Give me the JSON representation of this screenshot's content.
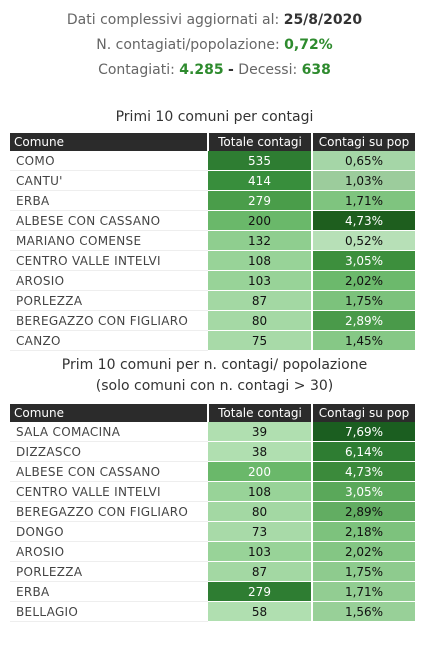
{
  "header": {
    "line1_label": "Dati complessivi aggiornati al:",
    "line1_value": "25/8/2020",
    "line2_label": "N. contagiati/popolazione:",
    "line2_value": "0,72%",
    "line3_label1": "Contagiati:",
    "line3_value1": "4.285",
    "line3_sep": "-",
    "line3_label2": "Decessi:",
    "line3_value2": "638"
  },
  "table1": {
    "title": "Primi 10 comuni per contagi",
    "columns": [
      "Comune",
      "Totale contagi",
      "Contagi su pop"
    ],
    "rows": [
      {
        "comune": "COMO",
        "totale": "535",
        "pct": "0,65%",
        "c2": "#2e7d32",
        "c3": "#a5d6a7",
        "t2": "#ffffff",
        "t3": "#111111"
      },
      {
        "comune": "CANTU'",
        "totale": "414",
        "pct": "1,03%",
        "c2": "#388e3c",
        "c3": "#9ccc9c",
        "t2": "#ffffff",
        "t3": "#111111"
      },
      {
        "comune": "ERBA",
        "totale": "279",
        "pct": "1,71%",
        "c2": "#4a9d4a",
        "c3": "#7fc47f",
        "t2": "#ffffff",
        "t3": "#111111"
      },
      {
        "comune": "ALBESE CON CASSANO",
        "totale": "200",
        "pct": "4,73%",
        "c2": "#6ab86a",
        "c3": "#1e5e1e",
        "t2": "#111111",
        "t3": "#ffffff"
      },
      {
        "comune": "MARIANO COMENSE",
        "totale": "132",
        "pct": "0,52%",
        "c2": "#8fce8f",
        "c3": "#b7e0b7",
        "t2": "#111111",
        "t3": "#111111"
      },
      {
        "comune": "CENTRO VALLE INTELVI",
        "totale": "108",
        "pct": "3,05%",
        "c2": "#98d398",
        "c3": "#3d8f3d",
        "t2": "#111111",
        "t3": "#ffffff"
      },
      {
        "comune": "AROSIO",
        "totale": "103",
        "pct": "2,02%",
        "c2": "#98d398",
        "c3": "#6cb96c",
        "t2": "#111111",
        "t3": "#111111"
      },
      {
        "comune": "PORLEZZA",
        "totale": "87",
        "pct": "1,75%",
        "c2": "#a3d8a3",
        "c3": "#7cc27c",
        "t2": "#111111",
        "t3": "#111111"
      },
      {
        "comune": "BEREGAZZO CON FIGLIARO",
        "totale": "80",
        "pct": "2,89%",
        "c2": "#a5d9a5",
        "c3": "#4a9a4a",
        "t2": "#111111",
        "t3": "#ffffff"
      },
      {
        "comune": "CANZO",
        "totale": "75",
        "pct": "1,45%",
        "c2": "#a8daa8",
        "c3": "#86c886",
        "t2": "#111111",
        "t3": "#111111"
      }
    ]
  },
  "table2": {
    "title_line1": "Prim 10 comuni per n. contagi/ popolazione",
    "title_line2": "(solo comuni con n. contagi > 30)",
    "columns": [
      "Comune",
      "Totale contagi",
      "Contagi su pop"
    ],
    "rows": [
      {
        "comune": "SALA COMACINA",
        "totale": "39",
        "pct": "7,69%",
        "c2": "#b0dfb0",
        "c3": "#1b5e20",
        "t2": "#111111",
        "t3": "#ffffff"
      },
      {
        "comune": "DIZZASCO",
        "totale": "38",
        "pct": "6,14%",
        "c2": "#b0dfb0",
        "c3": "#2e7d32",
        "t2": "#111111",
        "t3": "#ffffff"
      },
      {
        "comune": "ALBESE CON CASSANO",
        "totale": "200",
        "pct": "4,73%",
        "c2": "#6ab86a",
        "c3": "#3b8a3b",
        "t2": "#ffffff",
        "t3": "#ffffff"
      },
      {
        "comune": "CENTRO VALLE INTELVI",
        "totale": "108",
        "pct": "3,05%",
        "c2": "#98d398",
        "c3": "#5aa85a",
        "t2": "#111111",
        "t3": "#ffffff"
      },
      {
        "comune": "BEREGAZZO CON FIGLIARO",
        "totale": "80",
        "pct": "2,89%",
        "c2": "#a3d8a3",
        "c3": "#62ad62",
        "t2": "#111111",
        "t3": "#111111"
      },
      {
        "comune": "DONGO",
        "totale": "73",
        "pct": "2,18%",
        "c2": "#a8daa8",
        "c3": "#7dc27d",
        "t2": "#111111",
        "t3": "#111111"
      },
      {
        "comune": "AROSIO",
        "totale": "103",
        "pct": "2,02%",
        "c2": "#98d398",
        "c3": "#84c684",
        "t2": "#111111",
        "t3": "#111111"
      },
      {
        "comune": "PORLEZZA",
        "totale": "87",
        "pct": "1,75%",
        "c2": "#a3d8a3",
        "c3": "#8ecb8e",
        "t2": "#111111",
        "t3": "#111111"
      },
      {
        "comune": "ERBA",
        "totale": "279",
        "pct": "1,71%",
        "c2": "#2e7d32",
        "c3": "#92cd92",
        "t2": "#ffffff",
        "t3": "#111111"
      },
      {
        "comune": "BELLAGIO",
        "totale": "58",
        "pct": "1,56%",
        "c2": "#b0dfb0",
        "c3": "#98d098",
        "t2": "#111111",
        "t3": "#111111"
      }
    ]
  }
}
